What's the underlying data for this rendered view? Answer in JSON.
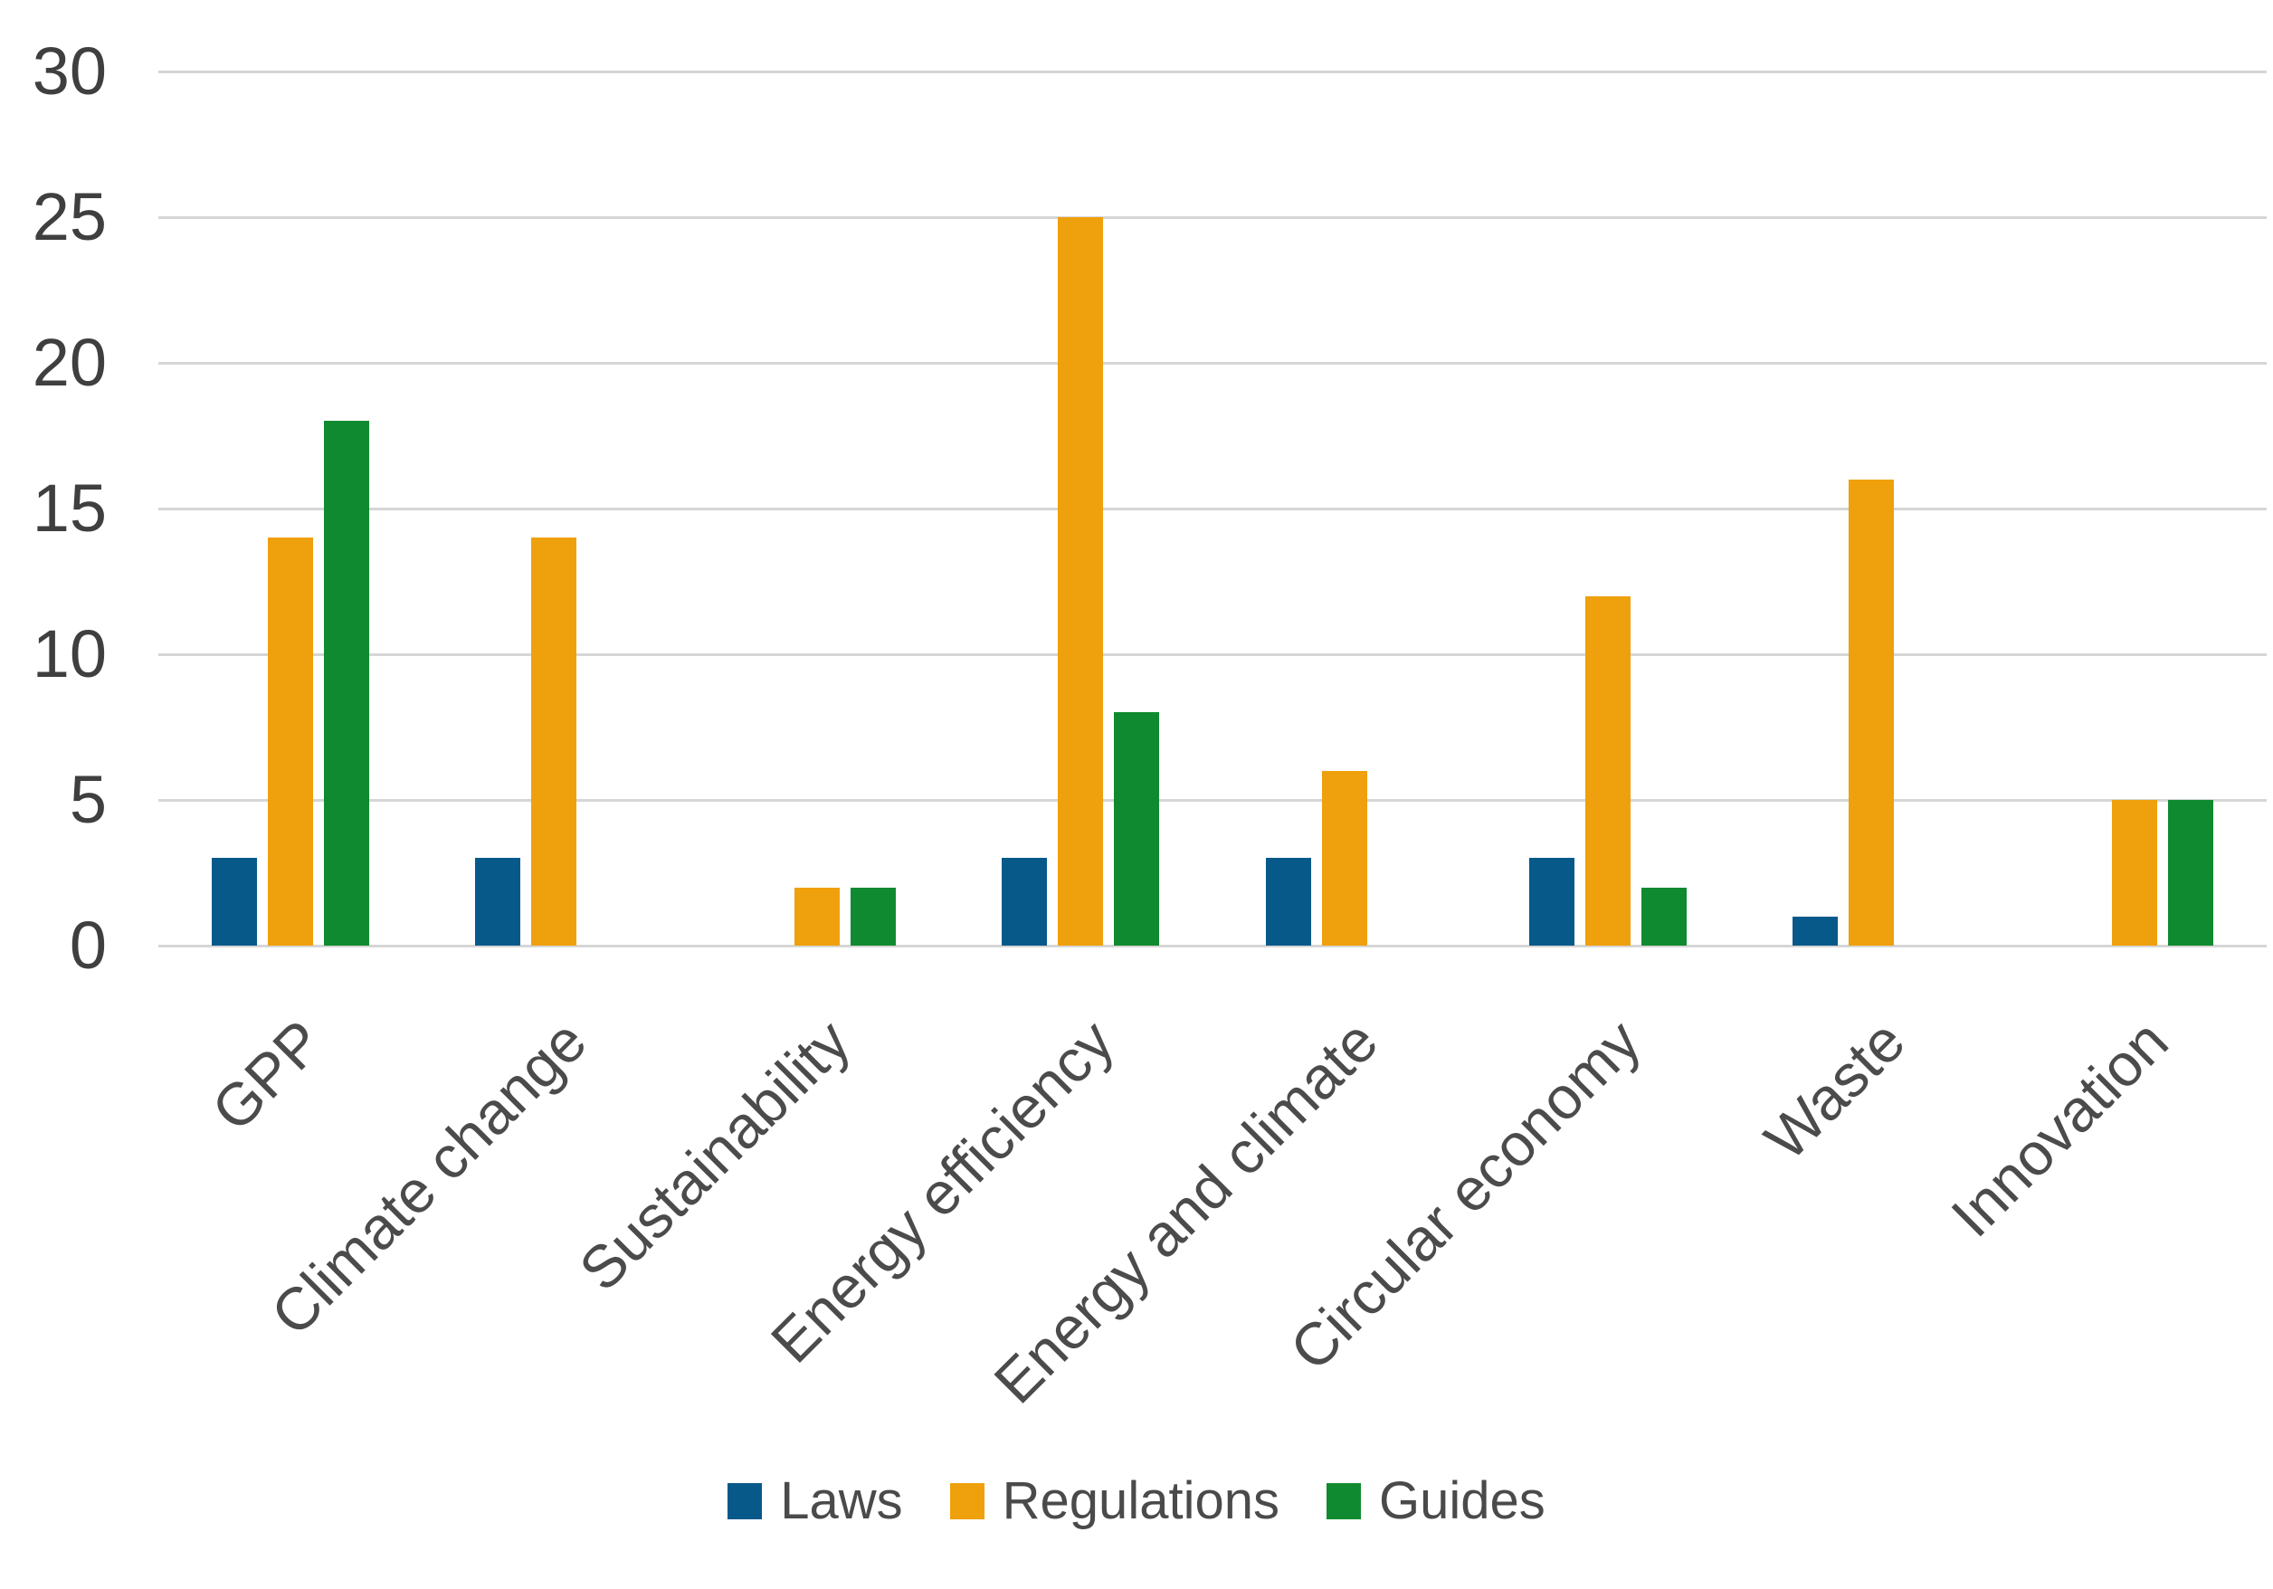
{
  "chart_data": {
    "type": "bar",
    "title": "",
    "xlabel": "",
    "ylabel": "",
    "categories": [
      "GPP",
      "Climate change",
      "Sustainability",
      "Energy efficiency",
      "Energy and climate",
      "Circular economy",
      "Waste",
      "Innovation"
    ],
    "series": [
      {
        "name": "Laws",
        "color": "#07598A",
        "values": [
          3,
          3,
          0,
          3,
          3,
          3,
          1,
          0
        ]
      },
      {
        "name": "Regulations",
        "color": "#EFA00D",
        "values": [
          14,
          14,
          2,
          25,
          6,
          12,
          16,
          5
        ]
      },
      {
        "name": "Guides",
        "color": "#108A30",
        "values": [
          18,
          0,
          2,
          8,
          0,
          2,
          0,
          5
        ]
      }
    ],
    "ylim": [
      0,
      30
    ],
    "yticks": [
      0,
      5,
      10,
      15,
      20,
      25,
      30
    ],
    "grid": true,
    "legend_position": "bottom"
  },
  "styles": {
    "grid_color": "#D6D6D6",
    "ytick_color": "#3F3F3F",
    "xlabel_color": "#4B4B4B",
    "legend_text_color": "#4A4A4A",
    "background": "#FFFFFF"
  }
}
